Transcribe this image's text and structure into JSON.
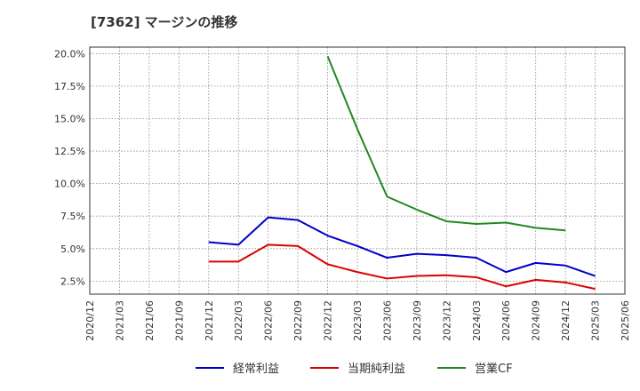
{
  "chart_data": {
    "type": "line",
    "title": "[7362]  マージンの推移",
    "xlabel": "",
    "ylabel": "",
    "x": [
      "2020/12",
      "2021/03",
      "2021/06",
      "2021/09",
      "2021/12",
      "2022/03",
      "2022/06",
      "2022/09",
      "2022/12",
      "2023/03",
      "2023/06",
      "2023/09",
      "2023/12",
      "2024/03",
      "2024/06",
      "2024/09",
      "2024/12",
      "2025/03",
      "2025/06"
    ],
    "ylim": [
      1.5,
      20.5
    ],
    "yticks": [
      2.5,
      5.0,
      7.5,
      10.0,
      12.5,
      15.0,
      17.5,
      20.0
    ],
    "ytick_labels": [
      "2.5%",
      "5.0%",
      "7.5%",
      "10.0%",
      "12.5%",
      "15.0%",
      "17.5%",
      "20.0%"
    ],
    "grid": true,
    "legend_position": "bottom",
    "series": [
      {
        "name": "経常利益",
        "color": "#0000cc",
        "values": [
          null,
          null,
          null,
          null,
          5.5,
          5.3,
          7.4,
          7.2,
          6.0,
          5.2,
          4.3,
          4.6,
          4.5,
          4.3,
          3.2,
          3.9,
          3.7,
          2.9,
          null
        ]
      },
      {
        "name": "当期純利益",
        "color": "#dd0000",
        "values": [
          null,
          null,
          null,
          null,
          4.0,
          4.0,
          5.3,
          5.2,
          3.8,
          3.2,
          2.7,
          2.9,
          2.95,
          2.8,
          2.1,
          2.6,
          2.4,
          1.9,
          null
        ]
      },
      {
        "name": "営業CF",
        "color": "#228822",
        "values": [
          null,
          null,
          null,
          null,
          null,
          null,
          null,
          null,
          19.8,
          14.2,
          9.0,
          8.0,
          7.1,
          6.9,
          7.0,
          6.6,
          6.4,
          null,
          null
        ]
      }
    ]
  }
}
